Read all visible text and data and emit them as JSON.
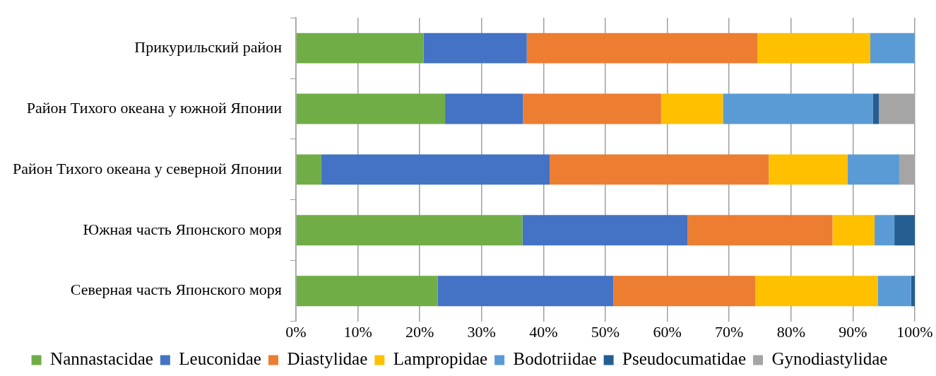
{
  "chart_data": {
    "type": "bar",
    "orientation": "horizontal",
    "stacked": true,
    "categories": [
      "Прикурильский район",
      "Район Тихого океана у южной Японии",
      "Район Тихого океана у северной Японии",
      "Южная часть Японского моря",
      "Северная часть Японского моря"
    ],
    "series": [
      {
        "name": "Nannastacidae",
        "color": "#70ad47",
        "values": [
          20.6,
          24.1,
          4.1,
          36.6,
          22.9
        ]
      },
      {
        "name": "Leuconidae",
        "color": "#4472c4",
        "values": [
          16.7,
          12.6,
          36.9,
          26.7,
          28.4
        ]
      },
      {
        "name": "Diastylidae",
        "color": "#ed7d31",
        "values": [
          37.3,
          22.3,
          35.4,
          23.4,
          22.9
        ]
      },
      {
        "name": "Lampropidae",
        "color": "#ffc000",
        "values": [
          18.2,
          10.0,
          12.7,
          6.8,
          19.8
        ]
      },
      {
        "name": "Bodotriidae",
        "color": "#5b9bd5",
        "values": [
          7.2,
          24.2,
          8.4,
          3.2,
          5.4
        ]
      },
      {
        "name": "Pseudocumatidae",
        "color": "#255e91",
        "values": [
          0,
          1.0,
          0,
          3.3,
          0.6
        ]
      },
      {
        "name": "Gynodiastylidae",
        "color": "#a5a5a5",
        "values": [
          0,
          5.8,
          2.5,
          0,
          0
        ]
      }
    ],
    "xlim": [
      0,
      100
    ],
    "xticks": [
      {
        "value": 0,
        "label": "0%"
      },
      {
        "value": 10,
        "label": "10%"
      },
      {
        "value": 20,
        "label": "20%"
      },
      {
        "value": 30,
        "label": "30%"
      },
      {
        "value": 40,
        "label": "40%"
      },
      {
        "value": 50,
        "label": "50%"
      },
      {
        "value": 60,
        "label": "60%"
      },
      {
        "value": 70,
        "label": "70%"
      },
      {
        "value": 80,
        "label": "80%"
      },
      {
        "value": 90,
        "label": "90%"
      },
      {
        "value": 100,
        "label": "100%"
      }
    ],
    "grid": "x",
    "legend": "bottom"
  }
}
